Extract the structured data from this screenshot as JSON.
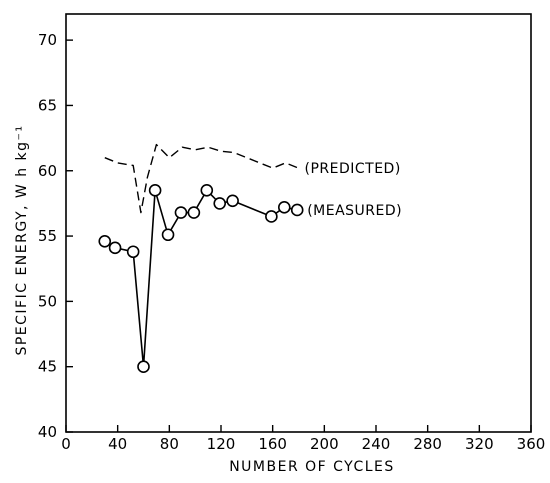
{
  "chart_data": {
    "type": "line",
    "xlabel": "NUMBER OF CYCLES",
    "ylabel": "SPECIFIC ENERGY, W h kg⁻¹",
    "xlim": [
      0,
      360
    ],
    "ylim": [
      40,
      72
    ],
    "x_ticks": [
      0,
      40,
      80,
      120,
      160,
      200,
      240,
      280,
      320,
      360
    ],
    "y_ticks": [
      40,
      45,
      50,
      55,
      60,
      65,
      70
    ],
    "grid": false,
    "series": [
      {
        "name": "(PREDICTED)",
        "style": "dashed",
        "x": [
          30,
          40,
          52,
          58,
          63,
          70,
          80,
          90,
          100,
          110,
          120,
          130,
          140,
          160,
          170,
          180
        ],
        "y": [
          61.0,
          60.6,
          60.4,
          56.8,
          59.5,
          62.0,
          61.0,
          61.8,
          61.6,
          61.8,
          61.5,
          61.4,
          61.0,
          60.2,
          60.6,
          60.2
        ]
      },
      {
        "name": "(MEASURED)",
        "style": "solid-circle",
        "x": [
          30,
          38,
          52,
          60,
          69,
          79,
          89,
          99,
          109,
          119,
          129,
          159,
          169,
          179
        ],
        "y": [
          54.6,
          54.1,
          53.8,
          45.0,
          58.5,
          55.1,
          56.8,
          56.8,
          58.5,
          57.5,
          57.7,
          56.5,
          57.2,
          57.0
        ]
      }
    ]
  }
}
